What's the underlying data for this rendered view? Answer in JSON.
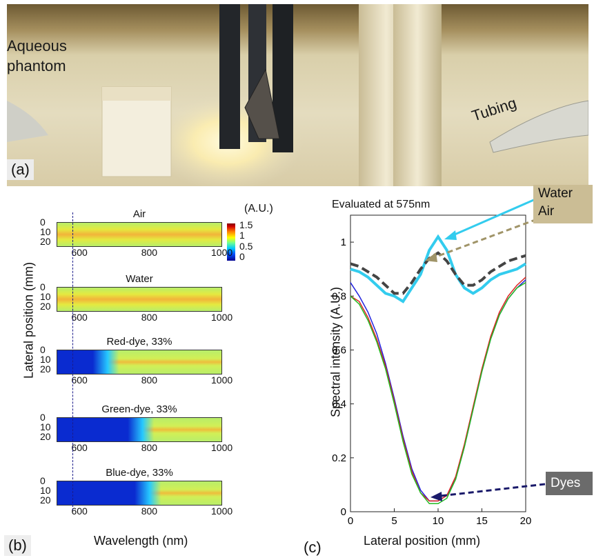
{
  "panel_a": {
    "label_aqueous": "Aqueous\nphantom",
    "label_tubing": "Tubing",
    "tag": "(a)"
  },
  "panel_b": {
    "tag": "(b)",
    "ylabel": "Lateral position (mm)",
    "xlabel": "Wavelength (nm)",
    "colorbar_unit": "(A.U.)",
    "colorbar_ticks": [
      "1.5",
      "1",
      "0.5",
      "0"
    ],
    "y_ticks": [
      "0",
      "10",
      "20"
    ],
    "x_ticks": [
      "600",
      "800",
      "1000"
    ],
    "heatmaps": [
      {
        "title": "Air",
        "blue_until_nm": 0
      },
      {
        "title": "Water",
        "blue_until_nm": 0
      },
      {
        "title": "Red-dye, 33%",
        "blue_until_nm": 660
      },
      {
        "title": "Green-dye, 33%",
        "blue_until_nm": 760
      },
      {
        "title": "Blue-dye, 33%",
        "blue_until_nm": 780
      }
    ]
  },
  "panel_c": {
    "tag": "(c)",
    "title": "Evaluated at 575nm",
    "callout_water": "Water",
    "callout_air": "Air",
    "callout_dyes": "Dyes"
  },
  "chart_data": {
    "type": "line",
    "title": "Evaluated at 575nm",
    "xlabel": "Lateral position (mm)",
    "ylabel": "Spectral intensity (A.U.)",
    "xlim": [
      0,
      20
    ],
    "ylim": [
      0,
      1.1
    ],
    "x_ticks": [
      0,
      5,
      10,
      15,
      20
    ],
    "y_ticks": [
      0,
      0.2,
      0.4,
      0.6,
      0.8,
      1
    ],
    "x": [
      0,
      1,
      2,
      3,
      4,
      5,
      6,
      7,
      8,
      9,
      10,
      11,
      12,
      13,
      14,
      15,
      16,
      17,
      18,
      19,
      20
    ],
    "series": [
      {
        "name": "Water",
        "color": "#33ccee",
        "values": [
          0.9,
          0.89,
          0.87,
          0.84,
          0.81,
          0.8,
          0.78,
          0.83,
          0.88,
          0.97,
          1.02,
          0.97,
          0.88,
          0.83,
          0.81,
          0.83,
          0.86,
          0.88,
          0.89,
          0.9,
          0.92
        ]
      },
      {
        "name": "Air",
        "color": "#444444",
        "values": [
          0.92,
          0.91,
          0.89,
          0.87,
          0.84,
          0.81,
          0.81,
          0.85,
          0.9,
          0.94,
          0.96,
          0.93,
          0.88,
          0.84,
          0.84,
          0.86,
          0.89,
          0.91,
          0.93,
          0.94,
          0.95
        ]
      },
      {
        "name": "",
        "color": "#2222dd",
        "values": [
          0.85,
          0.8,
          0.74,
          0.66,
          0.55,
          0.42,
          0.28,
          0.16,
          0.08,
          0.04,
          0.04,
          0.06,
          0.12,
          0.24,
          0.38,
          0.52,
          0.64,
          0.73,
          0.79,
          0.83,
          0.86
        ]
      },
      {
        "name": "",
        "color": "#dd2222",
        "values": [
          0.8,
          0.78,
          0.72,
          0.64,
          0.54,
          0.41,
          0.27,
          0.15,
          0.07,
          0.04,
          0.04,
          0.06,
          0.13,
          0.25,
          0.39,
          0.53,
          0.65,
          0.74,
          0.8,
          0.84,
          0.87
        ]
      },
      {
        "name": "",
        "color": "#22bb22",
        "values": [
          0.8,
          0.77,
          0.71,
          0.63,
          0.53,
          0.4,
          0.26,
          0.14,
          0.07,
          0.03,
          0.03,
          0.05,
          0.12,
          0.24,
          0.38,
          0.52,
          0.64,
          0.73,
          0.79,
          0.83,
          0.85
        ]
      }
    ]
  }
}
